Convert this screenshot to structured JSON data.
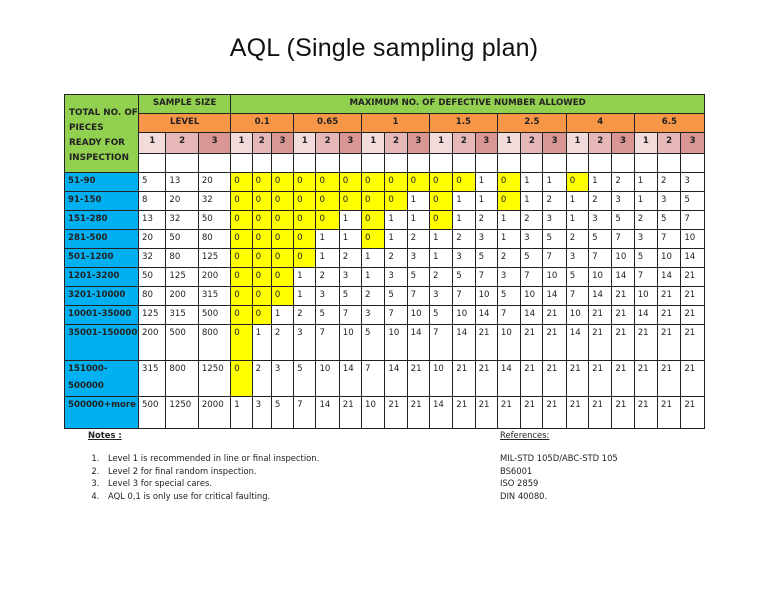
{
  "title": "AQL (Single sampling plan)",
  "table": {
    "corner_header": "TOTAL NO. OF PIECES READY FOR INSPECTION",
    "sample_size_header": "SAMPLE SIZE",
    "max_defective_header": "MAXIMUM NO. OF DEFECTIVE NUMBER ALLOWED",
    "level_label": "LEVEL",
    "aql_levels": [
      "0.1",
      "0.65",
      "1",
      "1.5",
      "2.5",
      "4",
      "6.5"
    ],
    "sub_levels": [
      "1",
      "2",
      "3"
    ],
    "rows": [
      {
        "range": "51-90",
        "sample": [
          "5",
          "13",
          "20"
        ],
        "values": [
          "0",
          "0",
          "0",
          "0",
          "0",
          "0",
          "0",
          "0",
          "0",
          "0",
          "0",
          "1",
          "0",
          "1",
          "1",
          "0",
          "1",
          "2",
          "1",
          "2",
          "3"
        ]
      },
      {
        "range": "91-150",
        "sample": [
          "8",
          "20",
          "32"
        ],
        "values": [
          "0",
          "0",
          "0",
          "0",
          "0",
          "0",
          "0",
          "0",
          "1",
          "0",
          "1",
          "1",
          "0",
          "1",
          "2",
          "1",
          "2",
          "3",
          "1",
          "3",
          "5"
        ]
      },
      {
        "range": "151-280",
        "sample": [
          "13",
          "32",
          "50"
        ],
        "values": [
          "0",
          "0",
          "0",
          "0",
          "0",
          "1",
          "0",
          "1",
          "1",
          "0",
          "1",
          "2",
          "1",
          "2",
          "3",
          "1",
          "3",
          "5",
          "2",
          "5",
          "7"
        ]
      },
      {
        "range": "281-500",
        "sample": [
          "20",
          "50",
          "80"
        ],
        "values": [
          "0",
          "0",
          "0",
          "0",
          "1",
          "1",
          "0",
          "1",
          "2",
          "1",
          "2",
          "3",
          "1",
          "3",
          "5",
          "2",
          "5",
          "7",
          "3",
          "7",
          "10"
        ]
      },
      {
        "range": "501-1200",
        "sample": [
          "32",
          "80",
          "125"
        ],
        "values": [
          "0",
          "0",
          "0",
          "0",
          "1",
          "2",
          "1",
          "2",
          "3",
          "1",
          "3",
          "5",
          "2",
          "5",
          "7",
          "3",
          "7",
          "10",
          "5",
          "10",
          "14"
        ]
      },
      {
        "range": "1201-3200",
        "sample": [
          "50",
          "125",
          "200"
        ],
        "values": [
          "0",
          "0",
          "0",
          "1",
          "2",
          "3",
          "1",
          "3",
          "5",
          "2",
          "5",
          "7",
          "3",
          "7",
          "10",
          "5",
          "10",
          "14",
          "7",
          "14",
          "21"
        ]
      },
      {
        "range": "3201-10000",
        "sample": [
          "80",
          "200",
          "315"
        ],
        "values": [
          "0",
          "0",
          "0",
          "1",
          "3",
          "5",
          "2",
          "5",
          "7",
          "3",
          "7",
          "10",
          "5",
          "10",
          "14",
          "7",
          "14",
          "21",
          "10",
          "21",
          "21"
        ]
      },
      {
        "range": "10001-35000",
        "sample": [
          "125",
          "315",
          "500"
        ],
        "values": [
          "0",
          "0",
          "1",
          "2",
          "5",
          "7",
          "3",
          "7",
          "10",
          "5",
          "10",
          "14",
          "7",
          "14",
          "21",
          "10",
          "21",
          "21",
          "14",
          "21",
          "21"
        ]
      },
      {
        "range": "35001-150000",
        "sample": [
          "200",
          "500",
          "800"
        ],
        "values": [
          "0",
          "1",
          "2",
          "3",
          "7",
          "10",
          "5",
          "10",
          "14",
          "7",
          "14",
          "21",
          "10",
          "21",
          "21",
          "14",
          "21",
          "21",
          "21",
          "21",
          "21"
        ],
        "tall": true
      },
      {
        "range": "151000-500000",
        "sample": [
          "315",
          "800",
          "1250"
        ],
        "values": [
          "0",
          "2",
          "3",
          "5",
          "10",
          "14",
          "7",
          "14",
          "21",
          "10",
          "21",
          "21",
          "14",
          "21",
          "21",
          "21",
          "21",
          "21",
          "21",
          "21",
          "21"
        ],
        "tall": true
      },
      {
        "range": "500000+more",
        "sample": [
          "500",
          "1250",
          "2000"
        ],
        "values": [
          "1",
          "3",
          "5",
          "7",
          "14",
          "21",
          "10",
          "21",
          "21",
          "14",
          "21",
          "21",
          "21",
          "21",
          "21",
          "21",
          "21",
          "21",
          "21",
          "21",
          "21"
        ],
        "tall": true
      }
    ]
  },
  "notes": {
    "heading": "Notes :",
    "items": [
      "Level  1 is recommended in line or final inspection.",
      "Level 2 for final random inspection.",
      "Level 3 for special cares.",
      "AQL 0,1 is only use for critical faulting."
    ]
  },
  "references": {
    "heading": "References:",
    "items": [
      "MIL-STD 105D/ABC-STD 105",
      "BS6001",
      "ISO 2859",
      "DIN 40080."
    ]
  },
  "colors": {
    "header_green": "#92d050",
    "header_orange": "#f79646",
    "level1": "#f2dcdb",
    "level2": "#e6b9b8",
    "level3": "#d99694",
    "range_blue": "#00b0f0",
    "zero_highlight": "#ffff00"
  }
}
